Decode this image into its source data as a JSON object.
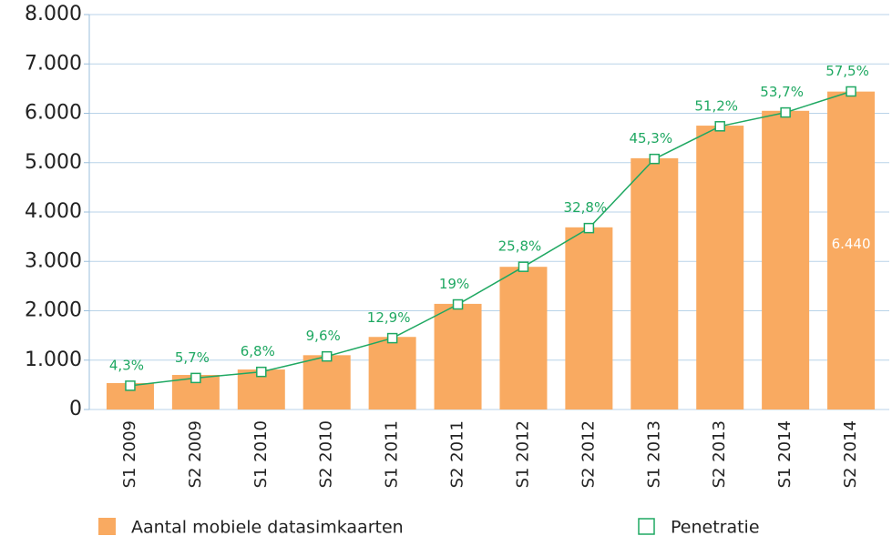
{
  "chart_data": {
    "type": "bar+line",
    "categories": [
      "S1 2009",
      "S2 2009",
      "S1 2010",
      "S2 2010",
      "S1 2011",
      "S2 2011",
      "S1 2012",
      "S2 2012",
      "S1 2013",
      "S2 2013",
      "S1 2014",
      "S2 2014"
    ],
    "series": [
      {
        "name": "Aantal mobiele datasimkaarten",
        "type": "bar",
        "color": "#f9aa61",
        "values": [
          535,
          700,
          810,
          1100,
          1470,
          2140,
          2890,
          3690,
          5090,
          5750,
          6050,
          6440
        ],
        "value_labels": [
          null,
          null,
          null,
          null,
          null,
          null,
          null,
          null,
          null,
          null,
          null,
          "6.440"
        ]
      },
      {
        "name": "Penetratie",
        "type": "line",
        "axis": "y2",
        "color": "#1fa862",
        "values": [
          4.3,
          5.7,
          6.8,
          9.6,
          12.9,
          19,
          25.8,
          32.8,
          45.3,
          51.2,
          53.7,
          57.5
        ],
        "value_labels": [
          "4,3%",
          "5,7%",
          "6,8%",
          "9,6%",
          "12,9%",
          "19%",
          "25,8%",
          "32,8%",
          "45,3%",
          "51,2%",
          "53,7%",
          "57,5%"
        ]
      }
    ],
    "ylim": [
      0,
      8000
    ],
    "yticks": [
      0,
      {
        "value": 1000,
        "label": "1.000"
      },
      {
        "value": 2000,
        "label": "2.000"
      },
      {
        "value": 3000,
        "label": "3.000"
      },
      {
        "value": 4000,
        "label": "4.000"
      },
      {
        "value": 5000,
        "label": "5.000"
      },
      {
        "value": 6000,
        "label": "6.000"
      },
      {
        "value": 7000,
        "label": "7.000"
      },
      {
        "value": 8000,
        "label": "8.000"
      }
    ],
    "y2lim": [
      0,
      71.4
    ],
    "grid": true
  }
}
